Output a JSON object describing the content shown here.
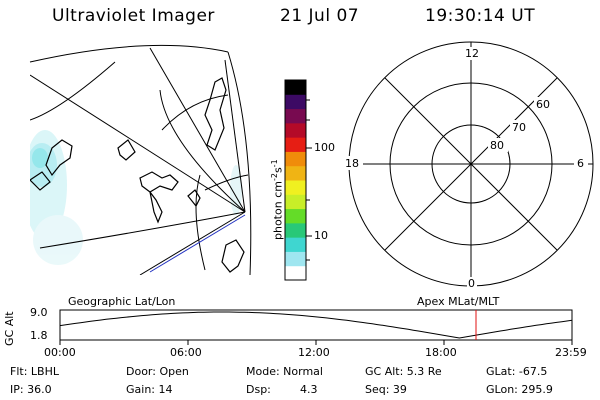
{
  "header": {
    "instrument": "Ultraviolet Imager",
    "date": "21 Jul 07",
    "time": "19:30:14 UT"
  },
  "colorbar": {
    "unit_label": "photon cm",
    "unit_exp1": "-2",
    "unit_s": "s",
    "unit_exp2": "-1",
    "ticks": [
      "100",
      "10"
    ],
    "scale": "log",
    "colors": [
      "#ffffff",
      "#9fe6f0",
      "#3fd6d0",
      "#28c878",
      "#64dc28",
      "#c8ee28",
      "#f0f020",
      "#f0b414",
      "#f08c0a",
      "#e61e14",
      "#b40a28",
      "#780a50",
      "#3c0a64",
      "#000000"
    ]
  },
  "polar_plot": {
    "mlt_labels": [
      "12",
      "18",
      "6",
      "0"
    ],
    "lat_labels": [
      "60",
      "70",
      "80"
    ]
  },
  "map_labels": {
    "left": "Geographic Lat/Lon",
    "right": "Apex MLat/MLT"
  },
  "altitude_plot": {
    "axis_label": "GC Alt",
    "y_ticks": [
      "9.0",
      "1.8"
    ],
    "x_ticks": [
      "00:00",
      "06:00",
      "12:00",
      "18:00",
      "23:59"
    ],
    "marker_time": "19:30",
    "marker_color": "#e01010"
  },
  "footer": {
    "flt": "Flt: LBHL",
    "ip": "IP: 36.0",
    "door": "Door: Open",
    "gain": "Gain: 14",
    "mode": "Mode: Normal",
    "dsp_label": "Dsp:",
    "dsp_value": "4.3",
    "gc_alt": "GC Alt: 5.3 Re",
    "seq": "Seq: 39",
    "glat": "GLat: -67.5",
    "glon": "GLon: 295.9"
  }
}
